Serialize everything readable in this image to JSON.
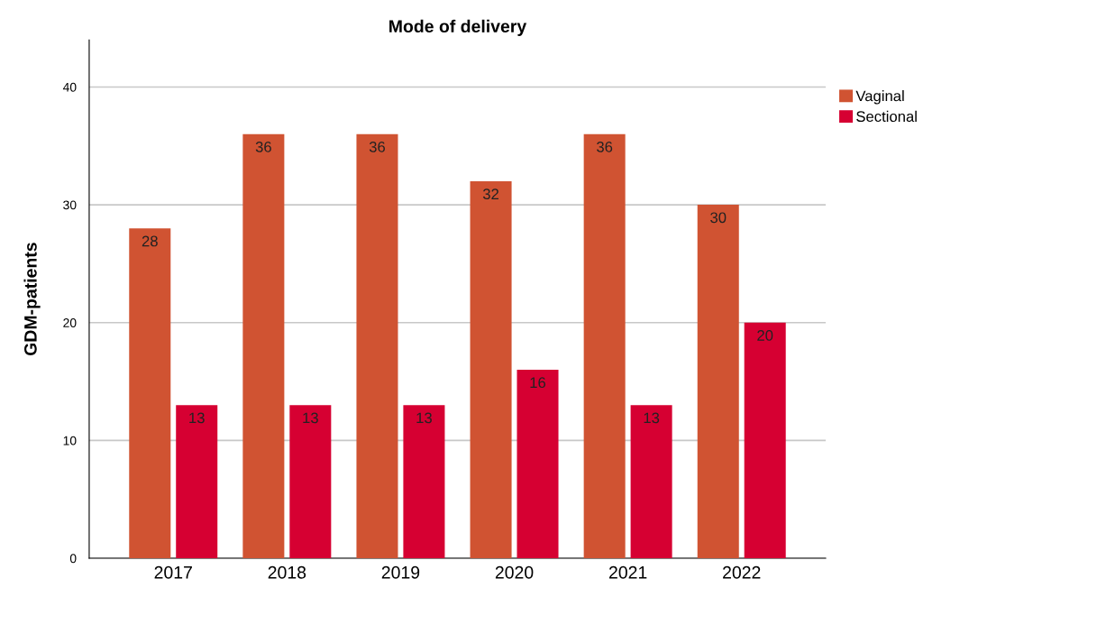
{
  "chart_data": {
    "type": "bar",
    "title": "Mode of delivery",
    "ylabel": "GDM-patients",
    "categories": [
      "2017",
      "2018",
      "2019",
      "2020",
      "2021",
      "2022"
    ],
    "series": [
      {
        "name": "Vaginal",
        "color": "#d05332",
        "values": [
          28,
          36,
          36,
          32,
          36,
          30
        ]
      },
      {
        "name": "Sectional",
        "color": "#d60032",
        "values": [
          13,
          13,
          13,
          16,
          13,
          20
        ]
      }
    ],
    "ylim": [
      0,
      44
    ],
    "yticks": [
      0,
      10,
      20,
      30,
      40
    ],
    "grid": "y",
    "legend": "top right",
    "data_labels": true
  }
}
